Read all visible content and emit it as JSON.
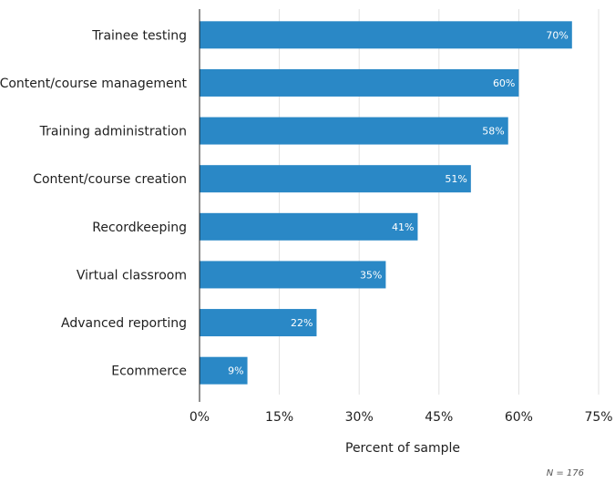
{
  "chart_data": {
    "type": "bar",
    "orientation": "horizontal",
    "categories": [
      "Trainee testing",
      "Content/course management",
      "Training administration",
      "Content/course creation",
      "Recordkeeping",
      "Virtual classroom",
      "Advanced reporting",
      "Ecommerce"
    ],
    "values": [
      70,
      60,
      58,
      51,
      41,
      35,
      22,
      9
    ],
    "value_labels": [
      "70%",
      "60%",
      "58%",
      "51%",
      "41%",
      "35%",
      "22%",
      "9%"
    ],
    "xlabel": "Percent of sample",
    "ylabel": "",
    "xlim": [
      0,
      75
    ],
    "ticks": [
      0,
      15,
      30,
      45,
      60,
      75
    ],
    "tick_labels": [
      "0%",
      "15%",
      "30%",
      "45%",
      "60%",
      "75%"
    ],
    "grid": true,
    "bar_color": "#2a88c6",
    "note": "N = 176"
  }
}
